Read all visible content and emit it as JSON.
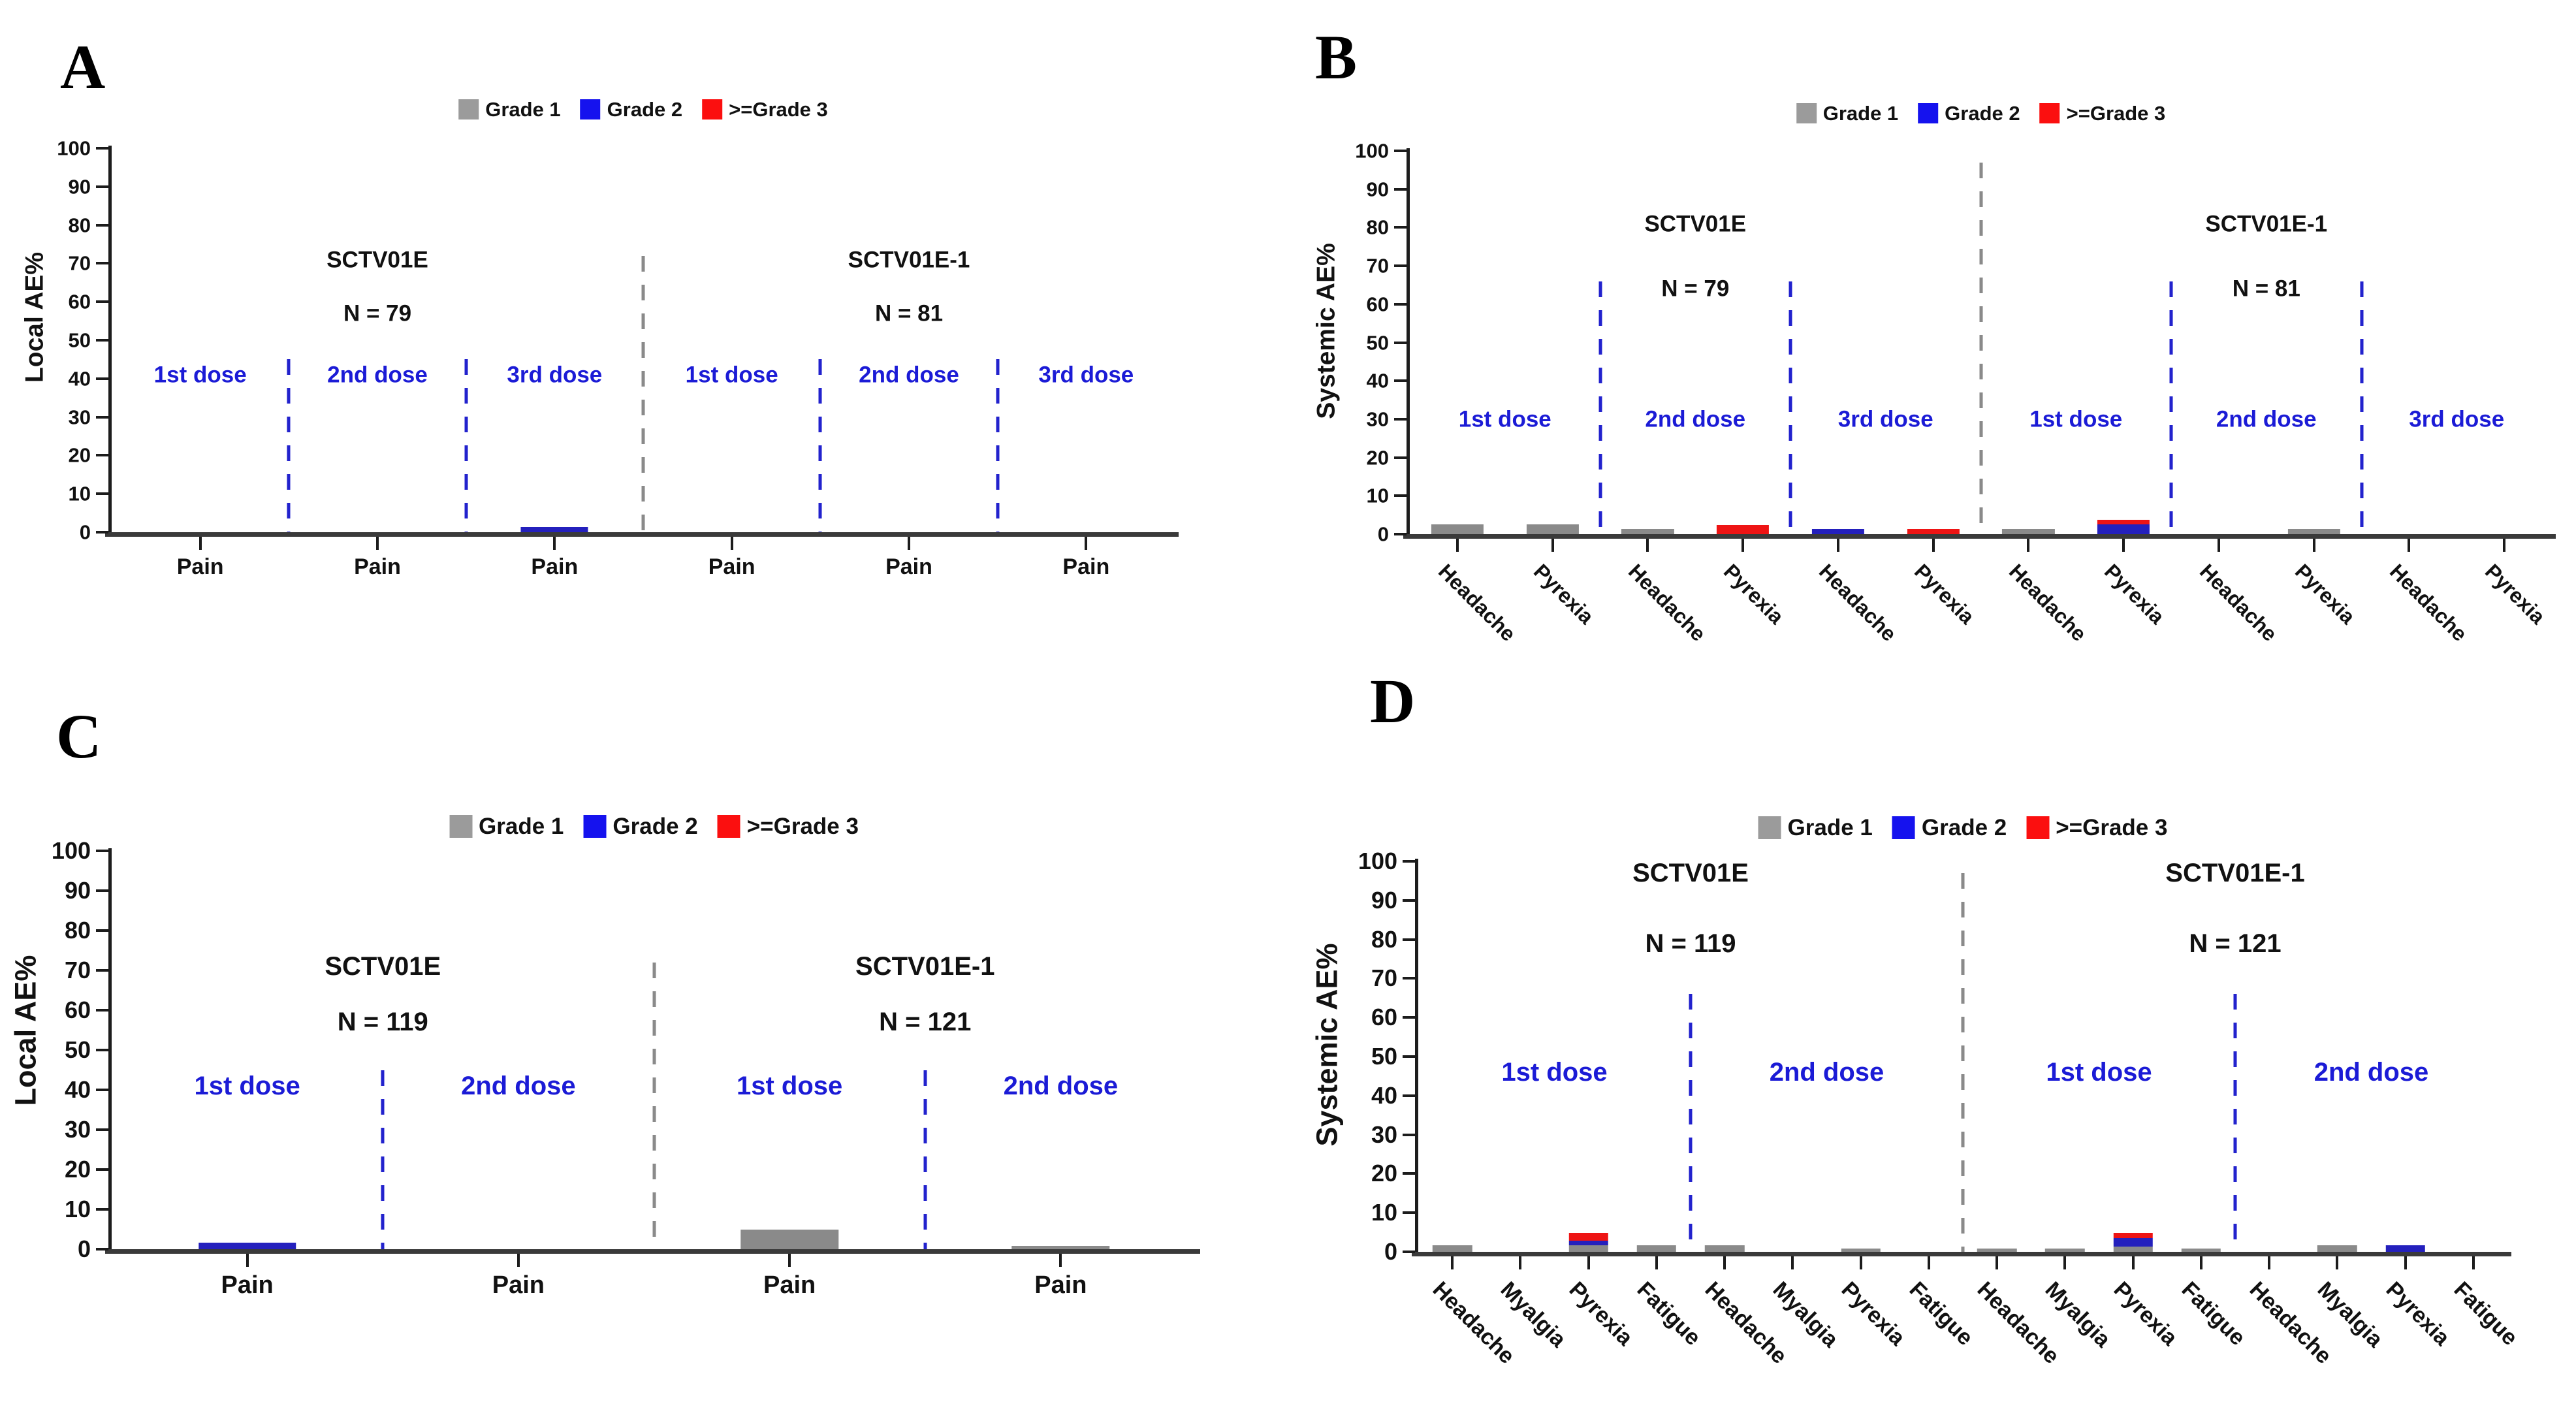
{
  "figure_background": "#ffffff",
  "colors": {
    "grade1_bar": "#8a8a8a",
    "grade2_bar": "#2420bd",
    "grade3_bar": "#ee1414",
    "legend_grade1": "#9b9b9b",
    "legend_grade2": "#1512ee",
    "legend_grade3": "#fb0f0f",
    "dose_text": "#1b1bd6",
    "divider_dose": "#2222cd",
    "divider_group": "#8a8a8a",
    "axis": "#1c1c1c",
    "axis_bottom": "#3a3a3a",
    "text": "#111111"
  },
  "legend": {
    "items": [
      {
        "key": "grade1",
        "label": "Grade 1"
      },
      {
        "key": "grade2",
        "label": "Grade 2"
      },
      {
        "key": "grade3plus",
        "label": ">=Grade 3"
      }
    ]
  },
  "chart_data": [
    {
      "panel": "A",
      "type": "bar",
      "stacked": true,
      "ylabel": "Local AE%",
      "ylim": [
        0,
        100
      ],
      "ytick_step": 10,
      "grid": false,
      "legend_position": "top-center",
      "legend": [
        "Grade 1",
        "Grade 2",
        ">=Grade 3"
      ],
      "groups": [
        {
          "title": "SCTV01E",
          "n_label": "N = 79",
          "sections": [
            {
              "dose": "1st dose",
              "categories": [
                {
                  "label": "Pain",
                  "grade1": 0,
                  "grade2": 0,
                  "grade3plus": 0
                }
              ]
            },
            {
              "dose": "2nd dose",
              "categories": [
                {
                  "label": "Pain",
                  "grade1": 0,
                  "grade2": 0,
                  "grade3plus": 0
                }
              ]
            },
            {
              "dose": "3rd dose",
              "categories": [
                {
                  "label": "Pain",
                  "grade1": 0,
                  "grade2": 1.3,
                  "grade3plus": 0
                }
              ]
            }
          ]
        },
        {
          "title": "SCTV01E-1",
          "n_label": "N = 81",
          "sections": [
            {
              "dose": "1st dose",
              "categories": [
                {
                  "label": "Pain",
                  "grade1": 0,
                  "grade2": 0,
                  "grade3plus": 0
                }
              ]
            },
            {
              "dose": "2nd dose",
              "categories": [
                {
                  "label": "Pain",
                  "grade1": 0,
                  "grade2": 0,
                  "grade3plus": 0
                }
              ]
            },
            {
              "dose": "3rd dose",
              "categories": [
                {
                  "label": "Pain",
                  "grade1": 0,
                  "grade2": 0,
                  "grade3plus": 0
                }
              ]
            }
          ]
        }
      ]
    },
    {
      "panel": "B",
      "type": "bar",
      "stacked": true,
      "ylabel": "Systemic AE%",
      "ylim": [
        0,
        100
      ],
      "ytick_step": 10,
      "grid": false,
      "legend_position": "top-center",
      "legend": [
        "Grade 1",
        "Grade 2",
        ">=Grade 3"
      ],
      "groups": [
        {
          "title": "SCTV01E",
          "n_label": "N = 79",
          "sections": [
            {
              "dose": "1st dose",
              "categories": [
                {
                  "label": "Headache",
                  "grade1": 2.5,
                  "grade2": 0,
                  "grade3plus": 0
                },
                {
                  "label": "Pyrexia",
                  "grade1": 2.5,
                  "grade2": 0,
                  "grade3plus": 0
                }
              ]
            },
            {
              "dose": "2nd dose",
              "categories": [
                {
                  "label": "Headache",
                  "grade1": 1.3,
                  "grade2": 0,
                  "grade3plus": 0
                },
                {
                  "label": "Pyrexia",
                  "grade1": 0,
                  "grade2": 0,
                  "grade3plus": 2.4
                }
              ]
            },
            {
              "dose": "3rd dose",
              "categories": [
                {
                  "label": "Headache",
                  "grade1": 0,
                  "grade2": 1.3,
                  "grade3plus": 0
                },
                {
                  "label": "Pyrexia",
                  "grade1": 0,
                  "grade2": 0,
                  "grade3plus": 1.4
                }
              ]
            }
          ]
        },
        {
          "title": "SCTV01E-1",
          "n_label": "N = 81",
          "sections": [
            {
              "dose": "1st dose",
              "categories": [
                {
                  "label": "Headache",
                  "grade1": 1.3,
                  "grade2": 0,
                  "grade3plus": 0
                },
                {
                  "label": "Pyrexia",
                  "grade1": 0,
                  "grade2": 2.5,
                  "grade3plus": 1.3
                }
              ]
            },
            {
              "dose": "2nd dose",
              "categories": [
                {
                  "label": "Headache",
                  "grade1": 0,
                  "grade2": 0,
                  "grade3plus": 0
                },
                {
                  "label": "Pyrexia",
                  "grade1": 1.3,
                  "grade2": 0,
                  "grade3plus": 0
                }
              ]
            },
            {
              "dose": "3rd dose",
              "categories": [
                {
                  "label": "Headache",
                  "grade1": 0,
                  "grade2": 0,
                  "grade3plus": 0
                },
                {
                  "label": "Pyrexia",
                  "grade1": 0,
                  "grade2": 0,
                  "grade3plus": 0
                }
              ]
            }
          ]
        }
      ]
    },
    {
      "panel": "C",
      "type": "bar",
      "stacked": true,
      "ylabel": "Local AE%",
      "ylim": [
        0,
        100
      ],
      "ytick_step": 10,
      "grid": false,
      "legend_position": "top-center",
      "legend": [
        "Grade 1",
        "Grade 2",
        ">=Grade 3"
      ],
      "groups": [
        {
          "title": "SCTV01E",
          "n_label": "N = 119",
          "sections": [
            {
              "dose": "1st dose",
              "categories": [
                {
                  "label": "Pain",
                  "grade1": 0,
                  "grade2": 1.6,
                  "grade3plus": 0
                }
              ]
            },
            {
              "dose": "2nd dose",
              "categories": [
                {
                  "label": "Pain",
                  "grade1": 0,
                  "grade2": 0,
                  "grade3plus": 0
                }
              ]
            }
          ]
        },
        {
          "title": "SCTV01E-1",
          "n_label": "N = 121",
          "sections": [
            {
              "dose": "1st dose",
              "categories": [
                {
                  "label": "Pain",
                  "grade1": 5,
                  "grade2": 0,
                  "grade3plus": 0
                }
              ]
            },
            {
              "dose": "2nd dose",
              "categories": [
                {
                  "label": "Pain",
                  "grade1": 0.8,
                  "grade2": 0,
                  "grade3plus": 0
                }
              ]
            }
          ]
        }
      ]
    },
    {
      "panel": "D",
      "type": "bar",
      "stacked": true,
      "ylabel": "Systemic AE%",
      "ylim": [
        0,
        100
      ],
      "ytick_step": 10,
      "grid": false,
      "legend_position": "top-center",
      "legend": [
        "Grade 1",
        "Grade 2",
        ">=Grade 3"
      ],
      "groups": [
        {
          "title": "SCTV01E",
          "n_label": "N = 119",
          "sections": [
            {
              "dose": "1st dose",
              "categories": [
                {
                  "label": "Headache",
                  "grade1": 1.6,
                  "grade2": 0,
                  "grade3plus": 0
                },
                {
                  "label": "Myalgia",
                  "grade1": 0,
                  "grade2": 0,
                  "grade3plus": 0
                },
                {
                  "label": "Pyrexia",
                  "grade1": 1.6,
                  "grade2": 1.2,
                  "grade3plus": 2.0
                },
                {
                  "label": "Fatigue",
                  "grade1": 1.6,
                  "grade2": 0,
                  "grade3plus": 0
                }
              ]
            },
            {
              "dose": "2nd dose",
              "categories": [
                {
                  "label": "Headache",
                  "grade1": 1.6,
                  "grade2": 0,
                  "grade3plus": 0
                },
                {
                  "label": "Myalgia",
                  "grade1": 0,
                  "grade2": 0,
                  "grade3plus": 0
                },
                {
                  "label": "Pyrexia",
                  "grade1": 0.9,
                  "grade2": 0,
                  "grade3plus": 0
                },
                {
                  "label": "Fatigue",
                  "grade1": 0,
                  "grade2": 0,
                  "grade3plus": 0
                }
              ]
            }
          ]
        },
        {
          "title": "SCTV01E-1",
          "n_label": "N = 121",
          "sections": [
            {
              "dose": "1st dose",
              "categories": [
                {
                  "label": "Headache",
                  "grade1": 0.9,
                  "grade2": 0,
                  "grade3plus": 0
                },
                {
                  "label": "Myalgia",
                  "grade1": 0.9,
                  "grade2": 0,
                  "grade3plus": 0
                },
                {
                  "label": "Pyrexia",
                  "grade1": 1.3,
                  "grade2": 2.2,
                  "grade3plus": 1.3
                },
                {
                  "label": "Fatigue",
                  "grade1": 0.9,
                  "grade2": 0,
                  "grade3plus": 0
                }
              ]
            },
            {
              "dose": "2nd dose",
              "categories": [
                {
                  "label": "Headache",
                  "grade1": 0,
                  "grade2": 0,
                  "grade3plus": 0
                },
                {
                  "label": "Myalgia",
                  "grade1": 1.6,
                  "grade2": 0,
                  "grade3plus": 0
                },
                {
                  "label": "Pyrexia",
                  "grade1": 0,
                  "grade2": 1.6,
                  "grade3plus": 0
                },
                {
                  "label": "Fatigue",
                  "grade1": 0,
                  "grade2": 0,
                  "grade3plus": 0
                }
              ]
            }
          ]
        }
      ]
    }
  ]
}
